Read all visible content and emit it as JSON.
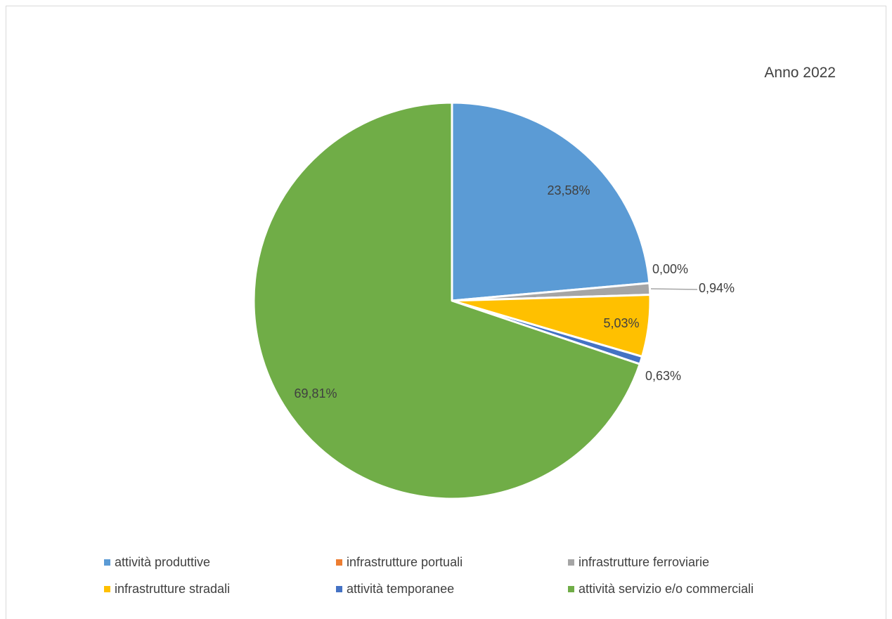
{
  "chart_data": {
    "type": "pie",
    "title": "Anno 2022",
    "categories": [
      "attività produttive",
      "infrastrutture portuali",
      "infrastrutture ferroviarie",
      "infrastrutture stradali",
      "attività temporanee",
      "attività servizio e/o commerciali"
    ],
    "values": [
      23.58,
      0.0,
      0.94,
      5.03,
      0.63,
      69.81
    ],
    "value_labels": [
      "23,58%",
      "0,00%",
      "0,94%",
      "5,03%",
      "0,63%",
      "69,81%"
    ],
    "colors": [
      "#5b9bd5",
      "#ed7d31",
      "#a5a5a5",
      "#ffc000",
      "#4472c4",
      "#70ad47"
    ],
    "legend_position": "bottom"
  }
}
